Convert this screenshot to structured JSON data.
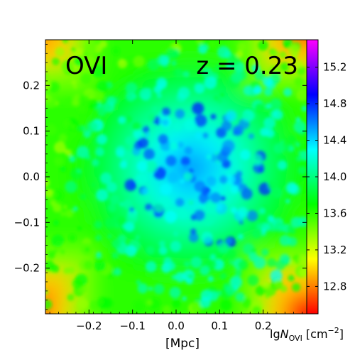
{
  "chart_data": {
    "type": "heatmap",
    "title": "",
    "species_label": "OVI",
    "redshift_label": "z = 0.23",
    "xlabel": "[Mpc]",
    "ylabel": "",
    "xlim": [
      -0.3,
      0.3
    ],
    "ylim": [
      -0.3,
      0.3
    ],
    "x_ticks": [
      -0.2,
      -0.1,
      0.0,
      0.1,
      0.2
    ],
    "x_tick_labels": [
      "−0.2",
      "−0.1",
      "0.0",
      "0.1",
      "0.2"
    ],
    "y_ticks": [
      0.2,
      0.1,
      0.0,
      -0.1,
      -0.2
    ],
    "y_tick_labels": [
      "0.2",
      "0.1",
      "0.0",
      "−0.1",
      "−0.2"
    ],
    "colorbar": {
      "label": "lgN_OVI [cm^-2]",
      "label_main": "lg",
      "label_var": "N",
      "label_sub": "OVI",
      "label_unit": " [cm",
      "label_exp": "−2",
      "label_close": "]",
      "range": [
        12.5,
        15.5
      ],
      "ticks": [
        12.8,
        13.2,
        13.6,
        14.0,
        14.4,
        14.8,
        15.2
      ],
      "tick_labels": [
        "12.8",
        "13.2",
        "13.6",
        "14.0",
        "14.4",
        "14.8",
        "15.2"
      ],
      "colormap": [
        "#ff0000",
        "#ffff00",
        "#00ff00",
        "#00ffff",
        "#0000ff",
        "#ff00ff"
      ]
    },
    "field_description": {
      "background_level": 13.6,
      "center_level": 14.6,
      "corner_level": 12.7,
      "grid": false
    }
  }
}
